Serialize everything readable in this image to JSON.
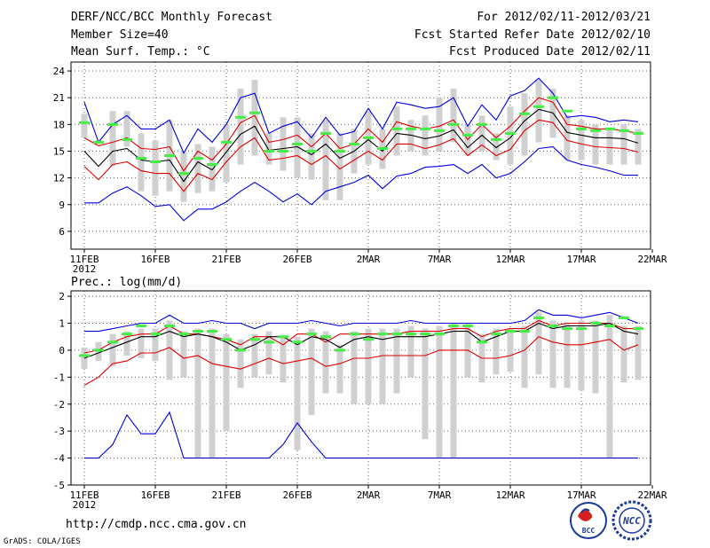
{
  "header": {
    "title": "DERF/NCC/BCC Monthly Forecast",
    "member_size": "Member Size=40",
    "variable": "Mean Surf. Temp.: °C",
    "forecast_period": "For 2012/02/11-2012/03/21",
    "start_ref": "Fcst Started Refer Date 2012/02/10",
    "produced": "Fcst Produced Date 2012/02/11"
  },
  "footer": {
    "url": "http://cmdp.ncc.cma.gov.cn",
    "credit": "GrADS: COLA/IGES",
    "logos": [
      "BCC",
      "NCC"
    ]
  },
  "colors": {
    "blue": "#0000dd",
    "red": "#dd0000",
    "black": "#000000",
    "green": "#44ee44",
    "bar": "#d0d0d0",
    "grid": "#666666"
  },
  "chart_data": [
    {
      "id": "temperature",
      "type": "line",
      "title": "Mean Surf. Temp.: °C",
      "xlabel": "",
      "ylabel": "°C",
      "ylim": [
        4,
        25
      ],
      "yticks": [
        6,
        9,
        12,
        15,
        18,
        21,
        24
      ],
      "xticks": [
        {
          "day": 0,
          "label": "11FEB",
          "sublabel": "2012"
        },
        {
          "day": 5,
          "label": "16FEB"
        },
        {
          "day": 10,
          "label": "21FEB"
        },
        {
          "day": 15,
          "label": "26FEB"
        },
        {
          "day": 20,
          "label": "2MAR"
        },
        {
          "day": 25,
          "label": "7MAR"
        },
        {
          "day": 30,
          "label": "12MAR"
        },
        {
          "day": 35,
          "label": "17MAR"
        },
        {
          "day": 40,
          "label": "22MAR"
        }
      ],
      "grid": true,
      "series": [
        {
          "name": "max",
          "color": "blue",
          "values": [
            20.5,
            16.0,
            18.0,
            19.0,
            17.5,
            17.5,
            18.5,
            14.8,
            17.5,
            16.0,
            18.0,
            21.0,
            21.5,
            17.0,
            17.8,
            18.3,
            16.5,
            18.8,
            16.8,
            17.2,
            19.8,
            17.5,
            20.5,
            20.2,
            19.8,
            20.0,
            21.0,
            17.8,
            20.2,
            18.5,
            21.2,
            21.8,
            23.2,
            21.5,
            18.8,
            19.0,
            18.8,
            18.3,
            18.5,
            18.3
          ]
        },
        {
          "name": "upper",
          "color": "red",
          "values": [
            16.5,
            15.6,
            16.0,
            16.5,
            15.3,
            15.2,
            15.5,
            12.8,
            15.0,
            14.0,
            15.8,
            18.2,
            19.0,
            16.0,
            16.3,
            16.8,
            15.5,
            17.0,
            15.3,
            15.8,
            17.5,
            16.0,
            18.3,
            17.8,
            17.5,
            17.8,
            18.5,
            16.3,
            18.0,
            16.5,
            17.8,
            19.5,
            21.0,
            20.5,
            18.0,
            17.8,
            17.5,
            17.5,
            17.3,
            17.0
          ]
        },
        {
          "name": "mean",
          "color": "black",
          "values": [
            15.0,
            13.3,
            15.0,
            15.3,
            14.0,
            13.8,
            14.0,
            11.6,
            13.8,
            12.9,
            14.9,
            16.9,
            17.8,
            15.1,
            15.3,
            15.5,
            14.6,
            15.8,
            14.2,
            15.0,
            16.3,
            15.0,
            17.0,
            16.8,
            16.4,
            16.7,
            17.4,
            15.4,
            16.8,
            15.4,
            16.5,
            18.4,
            19.7,
            19.3,
            17.1,
            16.8,
            16.5,
            16.5,
            16.4,
            15.9
          ]
        },
        {
          "name": "lower",
          "color": "red",
          "values": [
            13.3,
            11.8,
            13.5,
            13.8,
            12.8,
            12.5,
            12.5,
            10.5,
            12.5,
            11.8,
            13.8,
            15.5,
            16.5,
            14.0,
            14.2,
            14.5,
            13.5,
            14.5,
            13.0,
            14.0,
            15.0,
            14.0,
            15.8,
            15.8,
            15.3,
            15.7,
            16.4,
            14.5,
            15.7,
            14.5,
            15.2,
            17.3,
            18.5,
            18.2,
            16.2,
            15.8,
            15.5,
            15.4,
            15.3,
            14.9
          ]
        },
        {
          "name": "min",
          "color": "blue",
          "values": [
            9.2,
            9.2,
            10.3,
            11.0,
            10.0,
            8.8,
            9.0,
            7.2,
            8.5,
            8.5,
            9.3,
            10.5,
            11.5,
            10.5,
            9.3,
            10.2,
            9.0,
            10.5,
            11.0,
            11.5,
            12.3,
            10.8,
            12.2,
            12.5,
            13.2,
            13.3,
            13.5,
            12.5,
            13.5,
            12.0,
            12.5,
            13.8,
            15.3,
            15.5,
            14.0,
            13.5,
            13.2,
            12.8,
            12.3,
            12.3
          ]
        }
      ],
      "bars": [
        {
          "low": 16.5,
          "high": 19.2
        },
        {
          "low": 15.8,
          "high": 16.2
        },
        {
          "low": 13.3,
          "high": 19.5
        },
        {
          "low": 15.5,
          "high": 19.5
        },
        {
          "low": 10.5,
          "high": 17.0
        },
        {
          "low": 10.0,
          "high": 16.2
        },
        {
          "low": 10.5,
          "high": 18.5
        },
        {
          "low": 9.3,
          "high": 15.0
        },
        {
          "low": 10.3,
          "high": 15.8
        },
        {
          "low": 10.5,
          "high": 15.5
        },
        {
          "low": 11.5,
          "high": 18.0
        },
        {
          "low": 13.5,
          "high": 22.0
        },
        {
          "low": 14.5,
          "high": 23.0
        },
        {
          "low": 13.5,
          "high": 17.0
        },
        {
          "low": 12.8,
          "high": 18.8
        },
        {
          "low": 12.0,
          "high": 18.8
        },
        {
          "low": 11.8,
          "high": 17.0
        },
        {
          "low": 9.5,
          "high": 18.5
        },
        {
          "low": 9.5,
          "high": 17.0
        },
        {
          "low": 12.5,
          "high": 17.5
        },
        {
          "low": 13.5,
          "high": 19.5
        },
        {
          "low": 13.0,
          "high": 17.5
        },
        {
          "low": 14.5,
          "high": 20.0
        },
        {
          "low": 15.0,
          "high": 18.5
        },
        {
          "low": 14.5,
          "high": 19.0
        },
        {
          "low": 15.0,
          "high": 21.0
        },
        {
          "low": 16.0,
          "high": 22.0
        },
        {
          "low": 14.5,
          "high": 18.0
        },
        {
          "low": 15.0,
          "high": 19.0
        },
        {
          "low": 14.0,
          "high": 17.0
        },
        {
          "low": 13.5,
          "high": 20.0
        },
        {
          "low": 14.5,
          "high": 21.5
        },
        {
          "low": 16.0,
          "high": 23.0
        },
        {
          "low": 16.5,
          "high": 22.0
        },
        {
          "low": 14.0,
          "high": 19.0
        },
        {
          "low": 14.0,
          "high": 18.5
        },
        {
          "low": 13.5,
          "high": 18.0
        },
        {
          "low": 13.5,
          "high": 17.5
        },
        {
          "low": 13.5,
          "high": 18.0
        },
        {
          "low": 13.5,
          "high": 17.5
        }
      ],
      "medians": [
        18.2,
        16.0,
        18.0,
        16.3,
        14.2,
        13.8,
        14.5,
        12.5,
        14.2,
        13.5,
        16.0,
        18.8,
        19.3,
        15.0,
        15.0,
        15.8,
        15.0,
        17.0,
        15.0,
        15.8,
        16.5,
        15.3,
        17.5,
        17.5,
        17.5,
        17.3,
        18.0,
        16.8,
        18.0,
        16.3,
        17.0,
        19.2,
        20.0,
        21.0,
        19.5,
        17.5,
        17.3,
        17.5,
        17.3,
        17.0
      ]
    },
    {
      "id": "precipitation",
      "type": "line",
      "title": "Prec.: log(mm/d)",
      "xlabel": "",
      "ylabel": "log(mm/d)",
      "ylim": [
        -5,
        2.2
      ],
      "yticks": [
        -5,
        -4,
        -3,
        -2,
        -1,
        0,
        1,
        2
      ],
      "xticks": [
        {
          "day": 0,
          "label": "11FEB",
          "sublabel": "2012"
        },
        {
          "day": 5,
          "label": "16FEB"
        },
        {
          "day": 10,
          "label": "21FEB"
        },
        {
          "day": 15,
          "label": "26FEB"
        },
        {
          "day": 20,
          "label": "2MAR"
        },
        {
          "day": 25,
          "label": "7MAR"
        },
        {
          "day": 30,
          "label": "12MAR"
        },
        {
          "day": 35,
          "label": "17MAR"
        },
        {
          "day": 40,
          "label": "22MAR"
        }
      ],
      "grid": true,
      "series": [
        {
          "name": "max",
          "color": "blue",
          "values": [
            0.7,
            0.7,
            0.8,
            0.9,
            1.0,
            1.0,
            1.3,
            1.0,
            1.0,
            1.1,
            1.0,
            1.0,
            0.8,
            1.0,
            1.0,
            1.0,
            1.1,
            1.0,
            0.9,
            1.0,
            1.0,
            1.0,
            1.0,
            1.1,
            1.0,
            1.0,
            1.0,
            1.0,
            1.0,
            1.0,
            1.0,
            1.1,
            1.5,
            1.3,
            1.3,
            1.2,
            1.3,
            1.4,
            1.2,
            1.0
          ]
        },
        {
          "name": "upper",
          "color": "red",
          "values": [
            -0.1,
            0.0,
            0.3,
            0.5,
            0.6,
            0.6,
            0.9,
            0.6,
            0.6,
            0.5,
            0.4,
            0.2,
            0.5,
            0.5,
            0.2,
            0.6,
            0.6,
            0.3,
            0.6,
            0.6,
            0.6,
            0.6,
            0.6,
            0.7,
            0.7,
            0.7,
            0.8,
            0.8,
            0.5,
            0.7,
            0.8,
            0.8,
            1.1,
            0.9,
            1.0,
            1.0,
            1.0,
            1.0,
            0.8,
            0.8
          ]
        },
        {
          "name": "mean",
          "color": "black",
          "values": [
            -0.3,
            -0.1,
            0.1,
            0.3,
            0.5,
            0.5,
            0.7,
            0.5,
            0.6,
            0.5,
            0.3,
            0.0,
            0.2,
            0.5,
            0.5,
            0.2,
            0.5,
            0.4,
            0.1,
            0.4,
            0.5,
            0.4,
            0.5,
            0.5,
            0.5,
            0.6,
            0.7,
            0.7,
            0.3,
            0.5,
            0.7,
            0.7,
            1.0,
            0.8,
            0.9,
            0.9,
            0.9,
            1.0,
            0.7,
            0.6
          ]
        },
        {
          "name": "lower",
          "color": "red",
          "values": [
            -1.3,
            -1.0,
            -0.5,
            -0.4,
            -0.1,
            -0.1,
            0.1,
            -0.3,
            -0.2,
            -0.5,
            -0.6,
            -0.7,
            -0.5,
            -0.3,
            -0.5,
            -0.4,
            -0.3,
            -0.6,
            -0.5,
            -0.3,
            -0.3,
            -0.2,
            -0.2,
            -0.2,
            -0.2,
            0.0,
            0.0,
            0.0,
            -0.3,
            -0.3,
            -0.2,
            0.0,
            0.5,
            0.3,
            0.2,
            0.2,
            0.3,
            0.4,
            0.0,
            0.2
          ]
        },
        {
          "name": "min",
          "color": "blue",
          "values": [
            -4.0,
            -4.0,
            -3.5,
            -2.4,
            -3.1,
            -3.1,
            -2.3,
            -4.0,
            -4.0,
            -4.0,
            -4.0,
            -4.0,
            -4.0,
            -4.0,
            -3.5,
            -2.7,
            -3.4,
            -4.0,
            -4.0,
            -4.0,
            -4.0,
            -4.0,
            -4.0,
            -4.0,
            -4.0,
            -4.0,
            -4.0,
            -4.0,
            -4.0,
            -4.0,
            -4.0,
            -4.0,
            -4.0,
            -4.0,
            -4.0,
            -4.0,
            -4.0,
            -4.0,
            -4.0,
            -4.0
          ]
        }
      ],
      "bars": [
        {
          "low": -0.7,
          "high": 0.1
        },
        {
          "low": -0.4,
          "high": 0.3
        },
        {
          "low": -0.6,
          "high": 0.6
        },
        {
          "low": -0.2,
          "high": 0.7
        },
        {
          "low": -0.3,
          "high": 0.8
        },
        {
          "low": -0.4,
          "high": 0.8
        },
        {
          "low": -1.1,
          "high": 1.1
        },
        {
          "low": -1.0,
          "high": 0.7
        },
        {
          "low": -4.0,
          "high": 0.8
        },
        {
          "low": -4.0,
          "high": 0.8
        },
        {
          "low": -3.0,
          "high": 0.6
        },
        {
          "low": -1.4,
          "high": 0.4
        },
        {
          "low": -1.0,
          "high": 0.6
        },
        {
          "low": -0.9,
          "high": 0.7
        },
        {
          "low": -1.2,
          "high": 0.5
        },
        {
          "low": -3.7,
          "high": 0.5
        },
        {
          "low": -2.4,
          "high": 0.8
        },
        {
          "low": -1.6,
          "high": 0.7
        },
        {
          "low": -1.6,
          "high": 0.2
        },
        {
          "low": -2.0,
          "high": 0.7
        },
        {
          "low": -2.0,
          "high": 0.8
        },
        {
          "low": -2.0,
          "high": 0.8
        },
        {
          "low": -1.6,
          "high": 0.8
        },
        {
          "low": -1.0,
          "high": 0.9
        },
        {
          "low": -3.3,
          "high": 0.8
        },
        {
          "low": -4.0,
          "high": 0.9
        },
        {
          "low": -4.0,
          "high": 1.0
        },
        {
          "low": -1.0,
          "high": 1.0
        },
        {
          "low": -1.2,
          "high": 0.6
        },
        {
          "low": -0.9,
          "high": 0.8
        },
        {
          "low": -0.8,
          "high": 0.8
        },
        {
          "low": -1.4,
          "high": 0.9
        },
        {
          "low": -0.9,
          "high": 1.4
        },
        {
          "low": -1.4,
          "high": 1.1
        },
        {
          "low": -1.4,
          "high": 1.0
        },
        {
          "low": -1.5,
          "high": 1.1
        },
        {
          "low": -1.6,
          "high": 1.1
        },
        {
          "low": -4.0,
          "high": 1.3
        },
        {
          "low": -1.2,
          "high": 0.9
        },
        {
          "low": -1.1,
          "high": 0.9
        }
      ],
      "medians": [
        -0.2,
        0.0,
        0.3,
        0.6,
        0.9,
        0.6,
        0.9,
        0.6,
        0.7,
        0.7,
        0.4,
        0.0,
        0.4,
        0.3,
        0.5,
        0.3,
        0.6,
        0.5,
        0.0,
        0.6,
        0.4,
        0.6,
        0.6,
        0.6,
        0.6,
        0.6,
        0.9,
        0.9,
        0.3,
        0.6,
        0.7,
        0.7,
        1.2,
        0.9,
        0.8,
        0.8,
        1.0,
        0.9,
        1.2,
        0.8
      ]
    }
  ]
}
